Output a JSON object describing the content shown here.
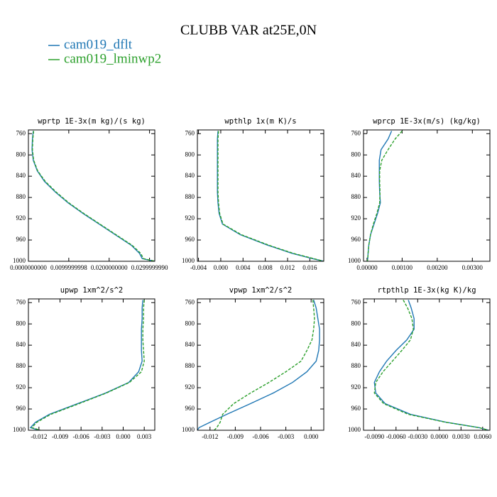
{
  "title": "CLUBB VAR at25E,0N",
  "legend": [
    {
      "name": "cam019_dflt",
      "color": "#1f77b4",
      "dashed": false
    },
    {
      "name": "cam019_lminwp2",
      "color": "#2ca02c",
      "dashed": true
    }
  ],
  "levels": [
    755,
    770,
    790,
    810,
    830,
    850,
    870,
    890,
    910,
    930,
    950,
    970,
    985,
    995,
    1000
  ],
  "chart_data": [
    {
      "type": "line",
      "title": "wprtp  1E-3x(m kg)/(s kg)",
      "xlim": [
        0,
        0.0313
      ],
      "ylim": [
        1000,
        753
      ],
      "xticks": [
        {
          "value": 0,
          "label": "0.0000000000"
        },
        {
          "value": 0.01,
          "label": "0.0099999998"
        },
        {
          "value": 0.02,
          "label": "0.0200000000"
        },
        {
          "value": 0.03,
          "label": "0.0299999990"
        }
      ],
      "yticks": [
        760,
        800,
        840,
        880,
        920,
        960,
        1000
      ],
      "series": [
        {
          "values": [
            0.0012,
            0.001,
            0.0009,
            0.0012,
            0.0022,
            0.004,
            0.0067,
            0.0098,
            0.0135,
            0.0175,
            0.0215,
            0.0255,
            0.0275,
            0.0282,
            0.0313
          ]
        },
        {
          "values": [
            0.0013,
            0.0011,
            0.001,
            0.0013,
            0.0023,
            0.0042,
            0.0069,
            0.01,
            0.0137,
            0.0177,
            0.0217,
            0.0257,
            0.0278,
            0.0285,
            0.0313
          ]
        }
      ]
    },
    {
      "type": "line",
      "title": "wpthlp  1x(m K)/s",
      "xlim": [
        -0.0042,
        0.0185
      ],
      "ylim": [
        1000,
        753
      ],
      "xticks": [
        -0.004,
        {
          "value": 0,
          "label": "0.000"
        },
        0.004,
        0.008,
        0.012,
        0.016
      ],
      "yticks": [
        760,
        800,
        840,
        880,
        920,
        960,
        1000
      ],
      "series": [
        {
          "values": [
            -0.0005,
            -0.0006,
            -0.0006,
            -0.0006,
            -0.0006,
            -0.0006,
            -0.0006,
            -0.0005,
            -0.0003,
            0.0003,
            0.0035,
            0.0085,
            0.0128,
            0.0165,
            0.0185
          ]
        },
        {
          "values": [
            -0.0004,
            -0.0005,
            -0.0005,
            -0.0005,
            -0.0005,
            -0.0005,
            -0.0005,
            -0.0004,
            -0.0002,
            0.0004,
            0.0037,
            0.0087,
            0.013,
            0.0167,
            0.0185
          ]
        }
      ]
    },
    {
      "type": "line",
      "title": "wprcp  1E-3x(m/s) (kg/kg)",
      "xlim": [
        -0.0001,
        0.0035
      ],
      "ylim": [
        1000,
        753
      ],
      "xticks": [
        {
          "value": 0,
          "label": "0.00000"
        },
        {
          "value": 0.001,
          "label": "0.00100"
        },
        {
          "value": 0.002,
          "label": "0.00200"
        },
        {
          "value": 0.003,
          "label": "0.00300"
        }
      ],
      "yticks": [
        760,
        800,
        840,
        880,
        920,
        960,
        1000
      ],
      "series": [
        {
          "values": [
            0.0007,
            0.0006,
            0.0004,
            0.00035,
            0.00035,
            0.00035,
            0.00036,
            0.00038,
            0.0003,
            0.0002,
            0.0001,
            5e-05,
            3e-05,
            2e-05,
            1e-05
          ]
        },
        {
          "values": [
            0.001,
            0.0008,
            0.0006,
            0.00042,
            0.00036,
            0.00036,
            0.00037,
            0.00036,
            0.00028,
            0.00018,
            0.0001,
            5e-05,
            3e-05,
            2e-05,
            1e-05
          ]
        }
      ]
    },
    {
      "type": "line",
      "title": "upwp  1xm^2/s^2",
      "xlim": [
        -0.0135,
        0.0045
      ],
      "ylim": [
        1000,
        753
      ],
      "xticks": [
        -0.012,
        -0.009,
        -0.006,
        -0.003,
        {
          "value": 0,
          "label": "0.000"
        },
        0.003
      ],
      "yticks": [
        760,
        800,
        840,
        880,
        920,
        960,
        1000
      ],
      "series": [
        {
          "values": [
            0.0028,
            0.0027,
            0.0027,
            0.0026,
            0.0026,
            0.0026,
            0.0027,
            0.0022,
            0.0008,
            -0.0025,
            -0.0065,
            -0.0105,
            -0.0125,
            -0.0132,
            -0.012
          ]
        },
        {
          "values": [
            0.003,
            0.0029,
            0.0029,
            0.0028,
            0.0028,
            0.0029,
            0.003,
            0.0026,
            0.0009,
            -0.0024,
            -0.0063,
            -0.0103,
            -0.0123,
            -0.013,
            -0.0118
          ]
        }
      ]
    },
    {
      "type": "line",
      "title": "vpwp  1xm^2/s^2",
      "xlim": [
        -0.0135,
        0.0015
      ],
      "ylim": [
        1000,
        753
      ],
      "xticks": [
        -0.012,
        -0.009,
        -0.006,
        -0.003,
        {
          "value": 0,
          "label": "0.000"
        }
      ],
      "yticks": [
        760,
        800,
        840,
        880,
        920,
        960,
        1000
      ],
      "series": [
        {
          "values": [
            0.0003,
            0.0006,
            0.0008,
            0.001,
            0.001,
            0.0009,
            0.0006,
            -0.0005,
            -0.0022,
            -0.0045,
            -0.0072,
            -0.01,
            -0.012,
            -0.0133,
            -0.0135
          ]
        },
        {
          "values": [
            0.0002,
            0.0003,
            0.0004,
            0.0003,
            0.0001,
            -0.0005,
            -0.0012,
            -0.003,
            -0.005,
            -0.0072,
            -0.0092,
            -0.0105,
            -0.0108,
            -0.0112,
            -0.0115
          ]
        }
      ]
    },
    {
      "type": "line",
      "title": "rtpthlp  1E-3x(kg K)/kg",
      "xlim": [
        -0.0105,
        0.007
      ],
      "ylim": [
        1000,
        753
      ],
      "xticks": [
        {
          "value": -0.009,
          "label": "-0.0090"
        },
        {
          "value": -0.006,
          "label": "-0.0060"
        },
        {
          "value": -0.003,
          "label": "-0.0030"
        },
        {
          "value": 0,
          "label": "0.0000"
        },
        {
          "value": 0.003,
          "label": "0.0030"
        },
        {
          "value": 0.006,
          "label": "0.0060"
        }
      ],
      "yticks": [
        760,
        800,
        840,
        880,
        920,
        960,
        1000
      ],
      "series": [
        {
          "values": [
            -0.0043,
            -0.0039,
            -0.0035,
            -0.0035,
            -0.0045,
            -0.006,
            -0.0073,
            -0.0083,
            -0.009,
            -0.0088,
            -0.0075,
            -0.004,
            0.001,
            0.0055,
            0.0068
          ]
        },
        {
          "values": [
            -0.005,
            -0.0044,
            -0.0038,
            -0.0036,
            -0.004,
            -0.0052,
            -0.0065,
            -0.0078,
            -0.0088,
            -0.009,
            -0.0077,
            -0.0043,
            0.0009,
            0.0055,
            0.0068
          ]
        }
      ]
    }
  ]
}
